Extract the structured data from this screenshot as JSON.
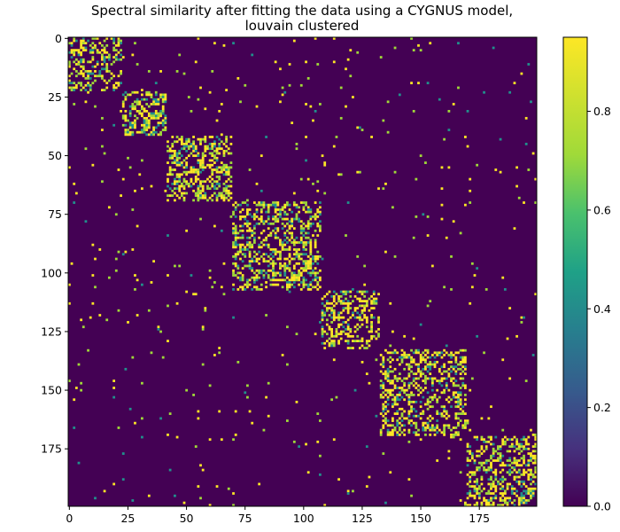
{
  "chart_data": {
    "type": "heatmap",
    "title_lines": [
      "Spectral similarity after fitting the data using a CYGNUS model,",
      "louvain clustered"
    ],
    "xlabel": "",
    "ylabel": "",
    "n": 200,
    "xlim": [
      0,
      199
    ],
    "ylim": [
      199,
      0
    ],
    "x_ticks": [
      0,
      25,
      50,
      75,
      100,
      125,
      150,
      175
    ],
    "y_ticks": [
      0,
      25,
      50,
      75,
      100,
      125,
      150,
      175
    ],
    "colormap": "viridis",
    "colorbar": {
      "range": [
        0.0,
        0.95
      ],
      "ticks": [
        "0.0",
        "0.2",
        "0.4",
        "0.6",
        "0.8"
      ],
      "tick_values": [
        0.0,
        0.2,
        0.4,
        0.6,
        0.8
      ]
    },
    "background_value": 0.0,
    "clusters": [
      {
        "start": 0,
        "end": 22,
        "density": 0.42
      },
      {
        "start": 23,
        "end": 41,
        "density": 0.45
      },
      {
        "start": 42,
        "end": 69,
        "density": 0.42
      },
      {
        "start": 70,
        "end": 107,
        "density": 0.4
      },
      {
        "start": 108,
        "end": 132,
        "density": 0.4
      },
      {
        "start": 133,
        "end": 169,
        "density": 0.38
      },
      {
        "start": 170,
        "end": 199,
        "density": 0.42
      }
    ],
    "off_cluster_density": 0.012
  },
  "colors": {
    "background": "#440154",
    "high": "#fde725",
    "mid": "#a0da39",
    "teal": "#21918c"
  }
}
